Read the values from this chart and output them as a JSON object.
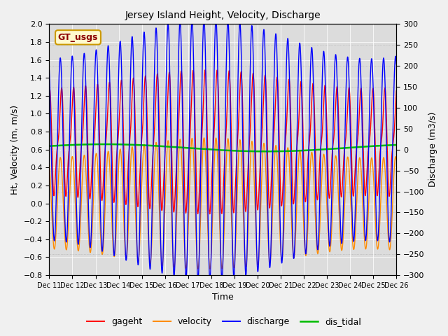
{
  "title": "Jersey Island Height, Velocity, Discharge",
  "xlabel": "Time",
  "ylabel_left": "Ht, Velocity (m, m/s)",
  "ylabel_right": "Discharge (m3/s)",
  "ylim_left": [
    -0.8,
    2.0
  ],
  "ylim_right": [
    -300,
    300
  ],
  "xtick_labels": [
    "Dec 11",
    "Dec 12",
    "Dec 13",
    "Dec 14",
    "Dec 15",
    "Dec 16",
    "Dec 17",
    "Dec 18",
    "Dec 19",
    "Dec 20",
    "Dec 21",
    "Dec 22",
    "Dec 23",
    "Dec 24",
    "Dec 25",
    "Dec 26"
  ],
  "legend_label": "GT_usgs",
  "line_colors": {
    "gageht": "#ff0000",
    "velocity": "#ff8c00",
    "discharge": "#0000ff",
    "dis_tidal": "#00bb00"
  },
  "line_widths": {
    "gageht": 1.0,
    "velocity": 1.0,
    "discharge": 1.0,
    "dis_tidal": 1.8
  },
  "plot_bg_color": "#dcdcdc",
  "fig_bg_color": "#f0f0f0",
  "tidal_period_hours": 12.42,
  "gageht_mean": 0.68,
  "gageht_amp": 0.62,
  "gageht_amp2": 0.18,
  "velocity_amp": 0.62,
  "discharge_amp": 265,
  "dis_tidal_mean": 0.62,
  "dis_tidal_amp": 0.04,
  "dis_tidal_period_days": 14,
  "amp_mod_strength": 0.18,
  "amp_mod_period_days": 14
}
